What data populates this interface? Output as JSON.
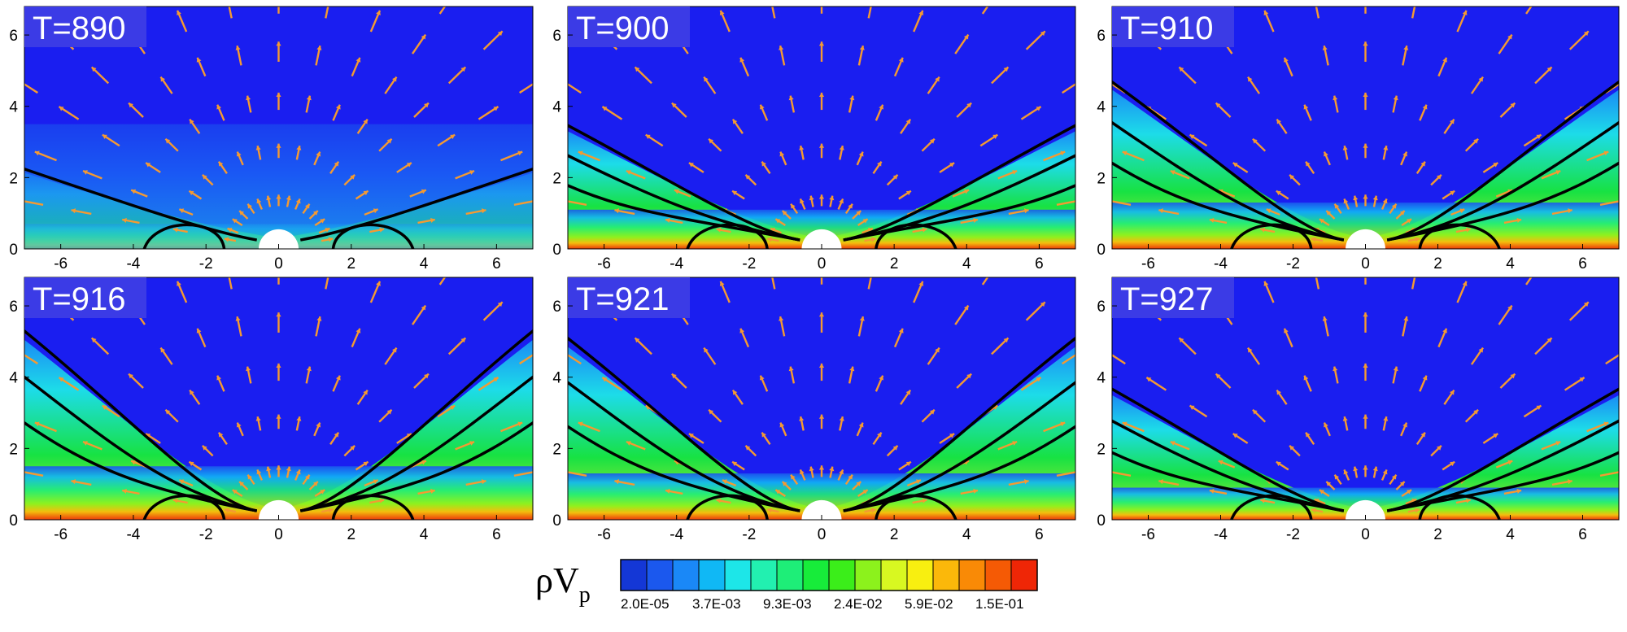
{
  "panels": [
    {
      "title": "T=890"
    },
    {
      "title": "T=900"
    },
    {
      "title": "T=910"
    },
    {
      "title": "T=916"
    },
    {
      "title": "T=921"
    },
    {
      "title": "T=927"
    }
  ],
  "axes": {
    "x_ticks": [
      "-6",
      "-4",
      "-2",
      "0",
      "2",
      "4",
      "6"
    ],
    "y_ticks": [
      "0",
      "2",
      "4",
      "6"
    ]
  },
  "colorbar": {
    "label_symbol": "ρV",
    "label_subscript": "p",
    "tick_labels": [
      "2.0E-05",
      "3.7E-03",
      "9.3E-03",
      "2.4E-02",
      "5.9E-02",
      "1.5E-01"
    ],
    "colors": [
      "#1437d6",
      "#1b58ee",
      "#1a88f7",
      "#10b8f5",
      "#1de6e8",
      "#22f0b0",
      "#1eee78",
      "#17ec3a",
      "#3bee1a",
      "#8cf21c",
      "#d8f821",
      "#f8ef10",
      "#fbb80a",
      "#f98a06",
      "#f55a05",
      "#ef2606"
    ]
  },
  "style": {
    "background_color": "#1a1ef0",
    "vector_color": "#f49a32",
    "contour_color": "#000000",
    "title_box_color": "#3b3be6"
  }
}
